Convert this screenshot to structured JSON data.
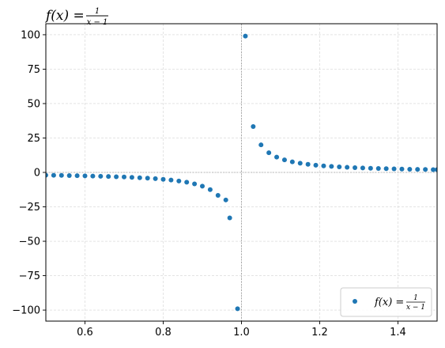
{
  "chart_data": {
    "type": "scatter",
    "title": {
      "lhs": "f(x) = ",
      "num": "1",
      "den": "x − 1"
    },
    "xlabel": "",
    "ylabel": "",
    "xlim": [
      0.5,
      1.5
    ],
    "ylim": [
      -108,
      108
    ],
    "xticks": [
      0.6,
      0.8,
      1.0,
      1.2,
      1.4
    ],
    "xtick_labels": [
      "0.6",
      "0.8",
      "1.0",
      "1.2",
      "1.4"
    ],
    "yticks": [
      -100,
      -75,
      -50,
      -25,
      0,
      25,
      50,
      75,
      100
    ],
    "ytick_labels": [
      "−100",
      "−75",
      "−50",
      "−25",
      "0",
      "25",
      "50",
      "75",
      "100"
    ],
    "grid": true,
    "legend": {
      "placement": "lower-right",
      "lhs": "f(x) = ",
      "num": "1",
      "den": "x − 1"
    },
    "reference_lines": {
      "x": 1.0,
      "y": 0
    },
    "series": [
      {
        "name": "f(x) = 1/(x − 1)",
        "color": "#1f77b4",
        "x": [
          0.5,
          0.52,
          0.54,
          0.56,
          0.58,
          0.6,
          0.62,
          0.64,
          0.66,
          0.68,
          0.7,
          0.72,
          0.74,
          0.76,
          0.78,
          0.8,
          0.82,
          0.84,
          0.86,
          0.88,
          0.9,
          0.92,
          0.94,
          0.96,
          0.97,
          0.99,
          1.01,
          1.03,
          1.05,
          1.07,
          1.09,
          1.11,
          1.13,
          1.15,
          1.17,
          1.19,
          1.21,
          1.23,
          1.25,
          1.27,
          1.29,
          1.31,
          1.33,
          1.35,
          1.37,
          1.39,
          1.41,
          1.43,
          1.45,
          1.47,
          1.49,
          1.5
        ],
        "y": [
          -2.0,
          -2.08,
          -2.17,
          -2.27,
          -2.38,
          -2.5,
          -2.63,
          -2.78,
          -2.94,
          -3.13,
          -3.33,
          -3.57,
          -3.85,
          -4.17,
          -4.55,
          -5.0,
          -5.56,
          -6.25,
          -7.14,
          -8.33,
          -10.0,
          -12.5,
          -16.67,
          -20.0,
          -33.0,
          -99.0,
          99.0,
          33.3,
          20.0,
          14.29,
          11.11,
          9.09,
          7.69,
          6.67,
          5.88,
          5.26,
          4.76,
          4.35,
          4.0,
          3.7,
          3.45,
          3.23,
          3.03,
          2.86,
          2.7,
          2.56,
          2.44,
          2.33,
          2.22,
          2.13,
          2.04,
          2.0
        ]
      }
    ]
  }
}
